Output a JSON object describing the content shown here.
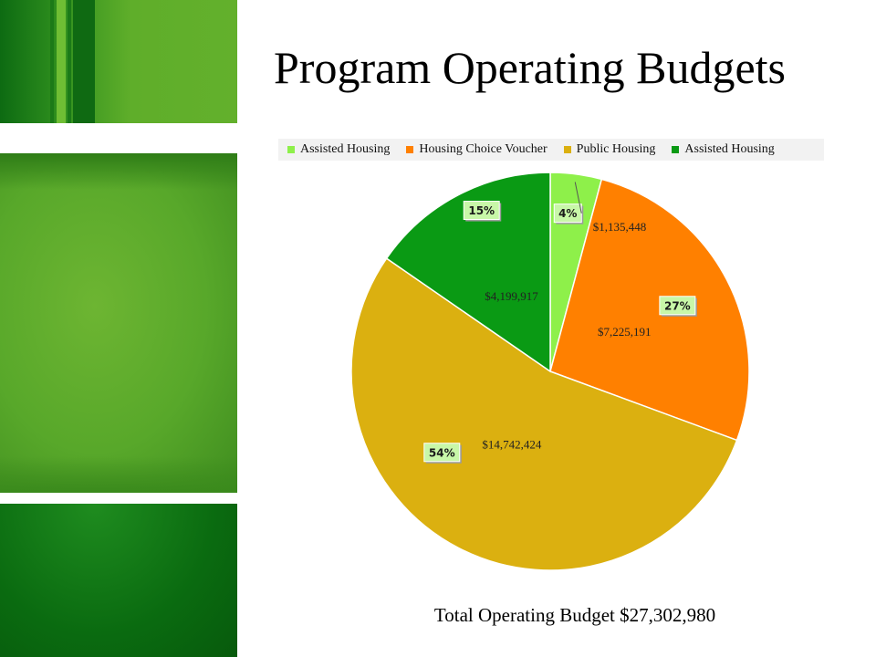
{
  "slide": {
    "title": "Program Operating Budgets",
    "footer": "Total Operating Budget $27,302,980"
  },
  "colors": {
    "assisted_housing_light": "#8ef04a",
    "housing_choice_voucher": "#ff8000",
    "public_housing": "#dbb010",
    "assisted_housing_dark": "#0a9a14"
  },
  "chart_data": {
    "type": "pie",
    "title": "",
    "legend_position": "top",
    "start_angle_deg": 0,
    "direction": "clockwise",
    "slices": [
      {
        "name": "Assisted Housing",
        "value": 1135448,
        "value_label": "$1,135,448",
        "percent_label": "4%",
        "color": "#8ef04a"
      },
      {
        "name": "Housing Choice Voucher",
        "value": 7225191,
        "value_label": "$7,225,191",
        "percent_label": "27%",
        "color": "#ff8000"
      },
      {
        "name": "Public Housing",
        "value": 14742424,
        "value_label": "$14,742,424",
        "percent_label": "54%",
        "color": "#dbb010"
      },
      {
        "name": "Assisted Housing",
        "value": 4199917,
        "value_label": "$4,199,917",
        "percent_label": "15%",
        "color": "#0a9a14"
      }
    ]
  }
}
